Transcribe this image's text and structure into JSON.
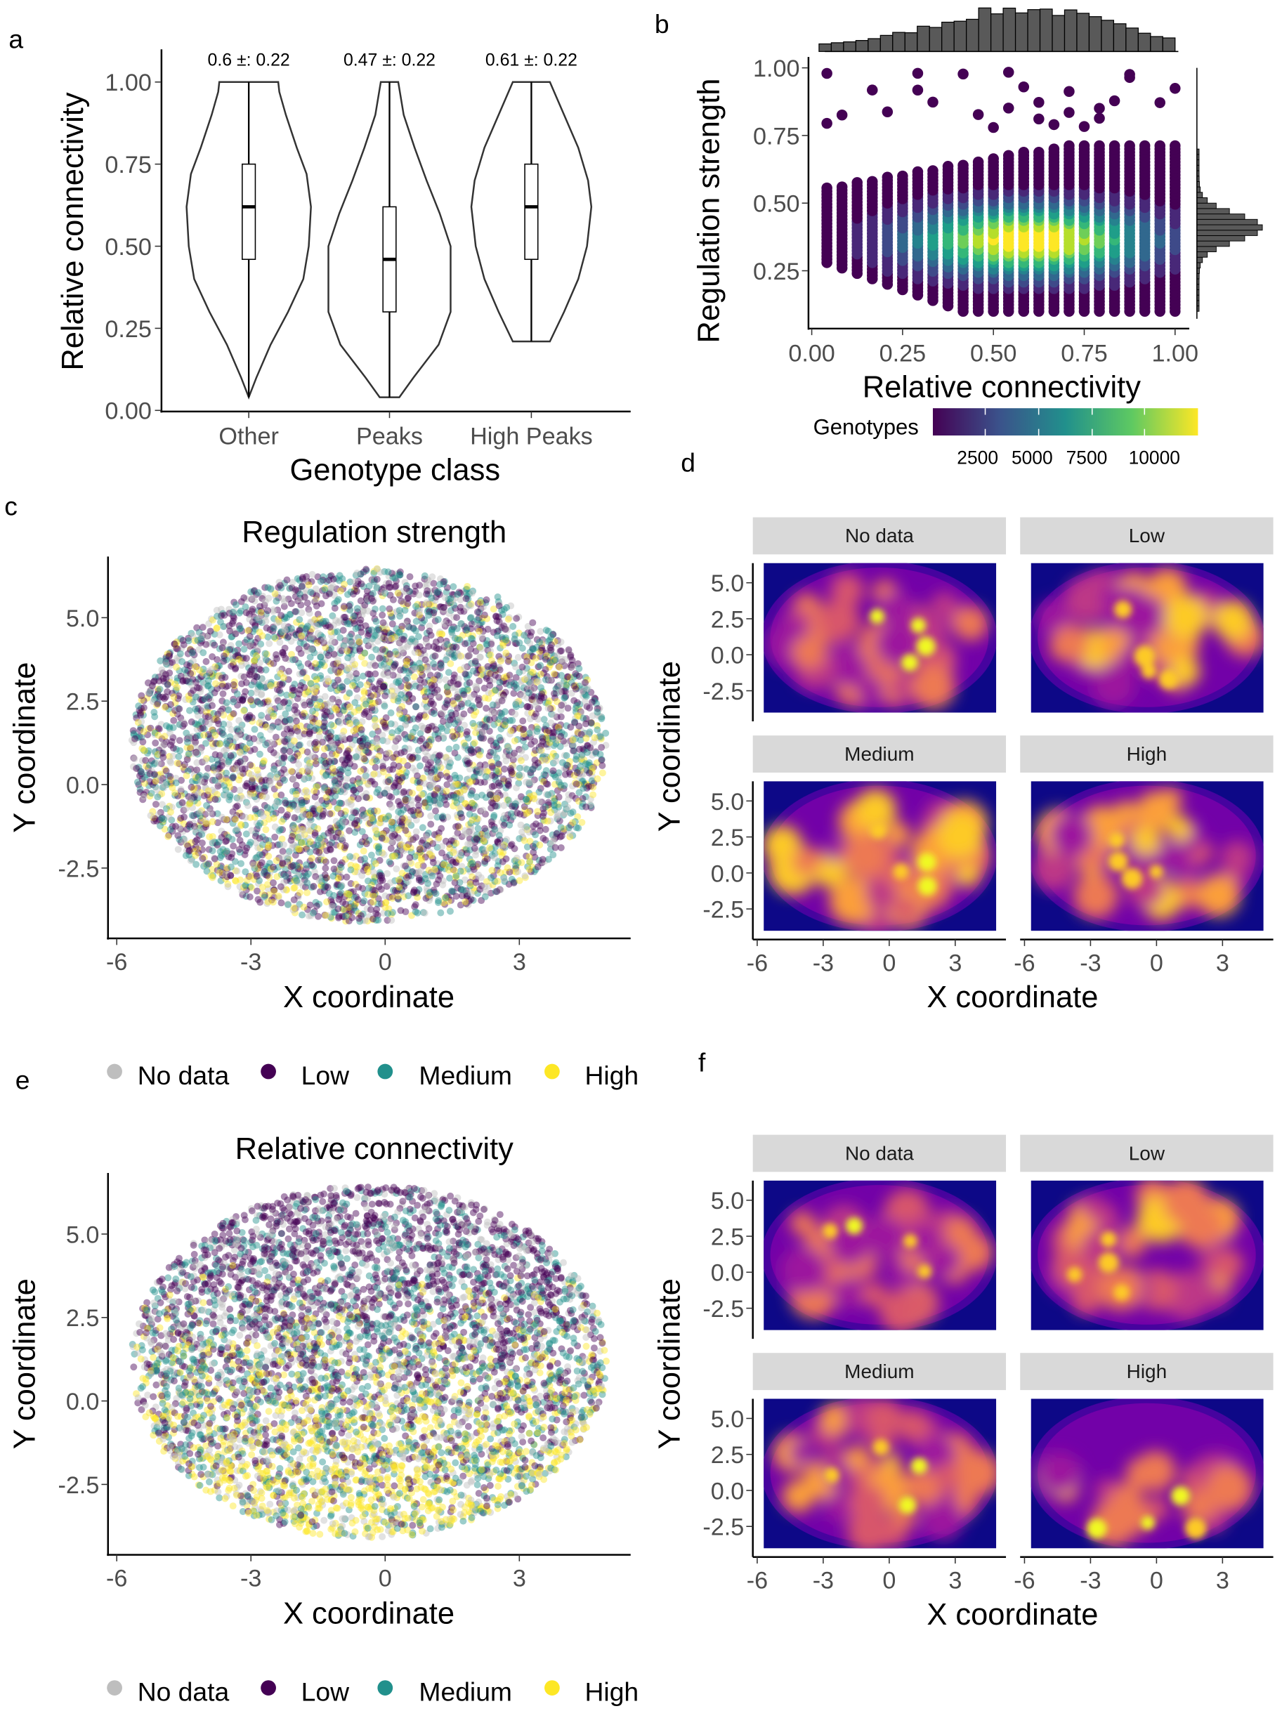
{
  "panel_labels": [
    "a",
    "b",
    "c",
    "d",
    "e",
    "f"
  ],
  "chart_data": [
    {
      "panel": "a",
      "type": "violin",
      "xlabel": "Genotype class",
      "ylabel": "Relative connectivity",
      "categories": [
        "Other",
        "Peaks",
        "High Peaks"
      ],
      "annotations": [
        "0.6 ±: 0.22",
        "0.47 ±: 0.22",
        "0.61 ±: 0.22"
      ],
      "box": [
        {
          "min": 0.04,
          "q1": 0.46,
          "median": 0.62,
          "q3": 0.75,
          "max": 1.0
        },
        {
          "min": 0.04,
          "q1": 0.3,
          "median": 0.46,
          "q3": 0.62,
          "max": 1.0
        },
        {
          "min": 0.21,
          "q1": 0.46,
          "median": 0.62,
          "q3": 0.75,
          "max": 1.0
        }
      ],
      "ylim": [
        0,
        1
      ],
      "y_ticks": [
        "0.00",
        "0.25",
        "0.50",
        "0.75",
        "1.00"
      ],
      "grid": false
    },
    {
      "panel": "b",
      "type": "scatter",
      "xlabel": "Relative connectivity",
      "ylabel": "Regulation strength",
      "xlim": [
        0,
        1
      ],
      "ylim": [
        0.08,
        1
      ],
      "x_ticks": [
        "0.00",
        "0.25",
        "0.50",
        "0.75",
        "1.00"
      ],
      "y_ticks": [
        "0.25",
        "0.50",
        "0.75",
        "1.00"
      ],
      "density_peak": {
        "x": 0.58,
        "y": 0.38
      },
      "marginal_histograms": true,
      "colorbar": {
        "title": "Genotypes",
        "ticks": [
          "2500",
          "5000",
          "7500",
          "10000"
        ],
        "palette": "viridis",
        "range": [
          0,
          12000
        ]
      },
      "grid": false
    },
    {
      "panel": "c",
      "type": "scatter",
      "title": "Regulation strength",
      "xlabel": "X coordinate",
      "ylabel": "Y coordinate",
      "x_ticks": [
        "-6",
        "-3",
        "0",
        "3"
      ],
      "y_ticks": [
        "-2.5",
        "0.0",
        "2.5",
        "5.0"
      ],
      "legend": {
        "position": "bottom",
        "items": [
          {
            "label": "No data",
            "color": "#bebebe"
          },
          {
            "label": "Low",
            "color": "#440154"
          },
          {
            "label": "Medium",
            "color": "#21908c"
          },
          {
            "label": "High",
            "color": "#fde725"
          }
        ]
      }
    },
    {
      "panel": "d",
      "type": "heatmap",
      "facets": [
        "No data",
        "Low",
        "Medium",
        "High"
      ],
      "xlabel": "X coordinate",
      "ylabel": "Y coordinate",
      "x_ticks": [
        "-6",
        "-3",
        "0",
        "3"
      ],
      "y_ticks": [
        "5.0",
        "2.5",
        "0.0",
        "-2.5"
      ],
      "palette": "plasma"
    },
    {
      "panel": "e",
      "type": "scatter",
      "title": "Relative connectivity",
      "xlabel": "X coordinate",
      "ylabel": "Y coordinate",
      "x_ticks": [
        "-6",
        "-3",
        "0",
        "3"
      ],
      "y_ticks": [
        "-2.5",
        "0.0",
        "2.5",
        "5.0"
      ],
      "legend": {
        "position": "bottom",
        "items": [
          {
            "label": "No data",
            "color": "#bebebe"
          },
          {
            "label": "Low",
            "color": "#440154"
          },
          {
            "label": "Medium",
            "color": "#21908c"
          },
          {
            "label": "High",
            "color": "#fde725"
          }
        ]
      }
    },
    {
      "panel": "f",
      "type": "heatmap",
      "facets": [
        "No data",
        "Low",
        "Medium",
        "High"
      ],
      "xlabel": "X coordinate",
      "ylabel": "Y coordinate",
      "x_ticks": [
        "-6",
        "-3",
        "0",
        "3"
      ],
      "y_ticks": [
        "5.0",
        "2.5",
        "0.0",
        "-2.5"
      ],
      "palette": "plasma"
    }
  ]
}
